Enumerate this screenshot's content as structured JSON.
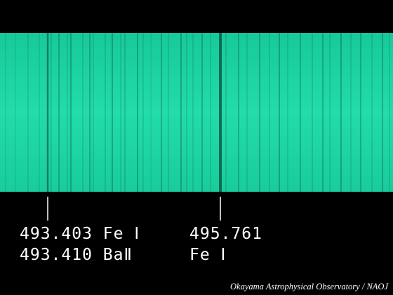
{
  "labels": [
    {
      "lines": [
        "493.403 Fe Ⅰ",
        "493.410 BaⅡ"
      ]
    },
    {
      "lines": [
        "495.761",
        "Fe Ⅰ"
      ]
    }
  ],
  "credit": "Okayama Astrophysical Observatory / NAOJ"
}
